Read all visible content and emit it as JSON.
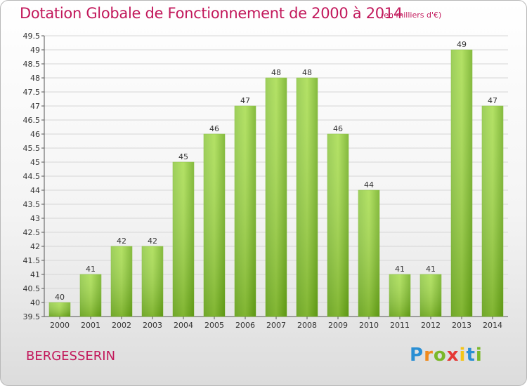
{
  "header": {
    "title": "Dotation Globale de Fonctionnement de 2000 à 2014",
    "subtitle": "(en milliers d'€)"
  },
  "footer": {
    "commune": "BERGESSERIN",
    "logo": "Proxiti"
  },
  "colors": {
    "accent": "#c2185b",
    "bar_light": "#a6dc4a",
    "bar_dark": "#5e9a12",
    "grid": "#d6d6d6"
  },
  "chart_data": {
    "type": "bar",
    "categories": [
      "2000",
      "2001",
      "2002",
      "2003",
      "2004",
      "2005",
      "2006",
      "2007",
      "2008",
      "2009",
      "2010",
      "2011",
      "2012",
      "2013",
      "2014"
    ],
    "values": [
      40,
      41,
      42,
      42,
      45,
      46,
      47,
      48,
      48,
      46,
      44,
      41,
      41,
      49,
      47
    ],
    "title": "Dotation Globale de Fonctionnement de 2000 à 2014",
    "subtitle": "(en milliers d'€)",
    "xlabel": "",
    "ylabel": "",
    "ylim": [
      39.5,
      49.5
    ],
    "yticks": [
      39.5,
      40,
      40.5,
      41,
      41.5,
      42,
      42.5,
      43,
      43.5,
      44,
      44.5,
      45,
      45.5,
      46,
      46.5,
      47,
      47.5,
      48,
      48.5,
      49,
      49.5
    ],
    "grid": true,
    "legend": "none"
  }
}
